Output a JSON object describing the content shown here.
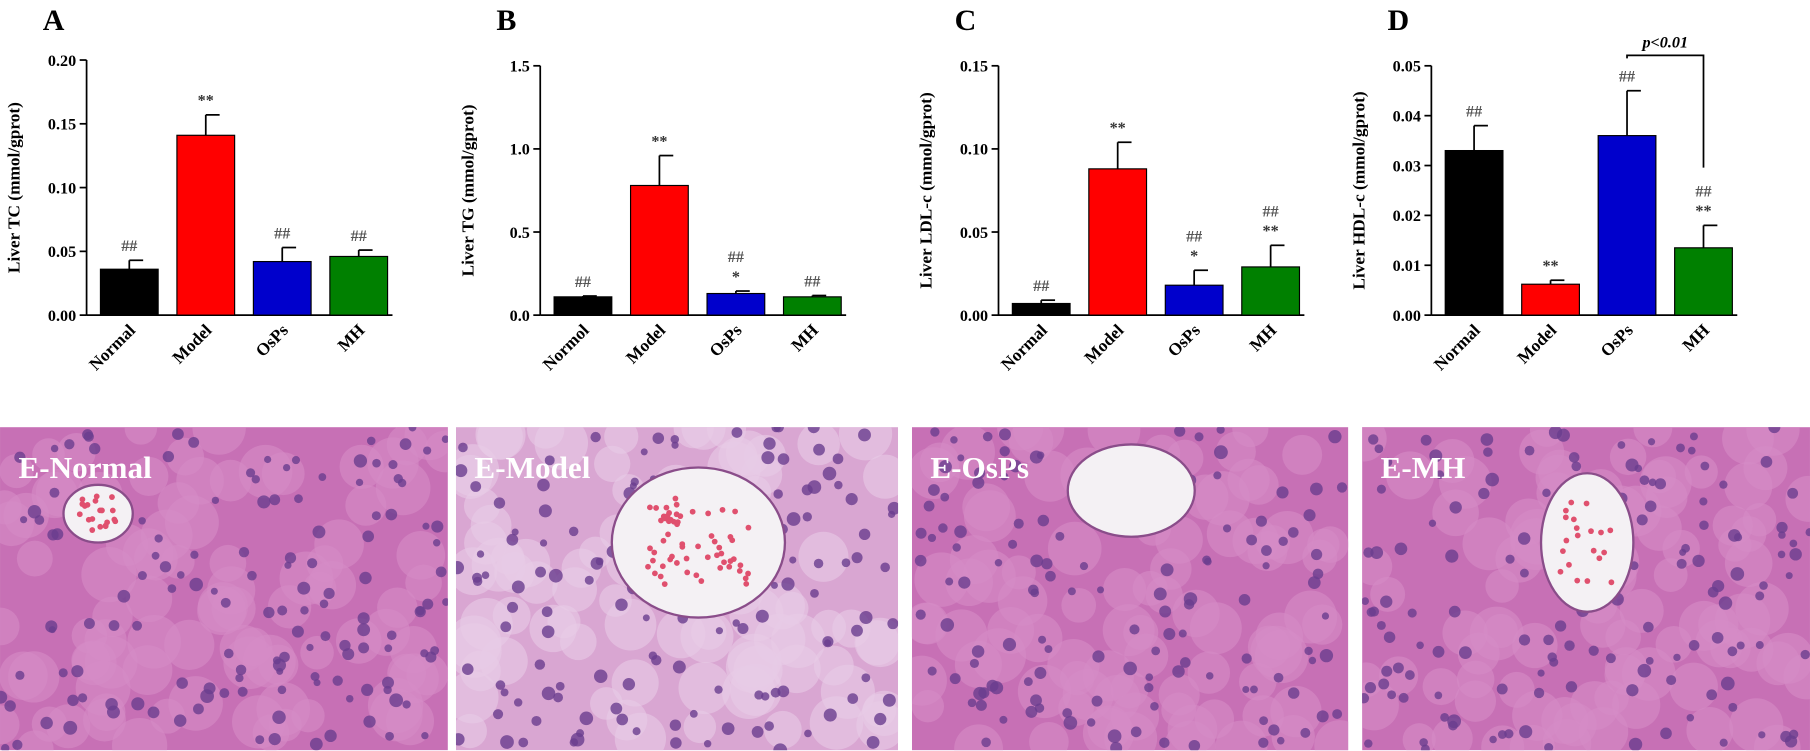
{
  "chart_data": [
    {
      "type": "bar",
      "label": "A",
      "ylabel": "Liver TC (mmol/gprot)",
      "categories": [
        "Normal",
        "Model",
        "OsPs",
        "MH"
      ],
      "values": [
        0.036,
        0.141,
        0.042,
        0.046
      ],
      "errors": [
        0.007,
        0.016,
        0.011,
        0.005
      ],
      "colors": [
        "#000000",
        "#ff0000",
        "#0000cc",
        "#008000"
      ],
      "annotations": [
        [
          "##"
        ],
        [
          "**"
        ],
        [
          "##"
        ],
        [
          "##"
        ]
      ],
      "ylim": [
        0,
        0.2
      ],
      "yticks": [
        {
          "value": 0,
          "label": "0.00"
        },
        {
          "value": 0.05,
          "label": "0.05"
        },
        {
          "value": 0.1,
          "label": "0.10"
        },
        {
          "value": 0.15,
          "label": "0.15"
        },
        {
          "value": 0.2,
          "label": "0.20"
        }
      ]
    },
    {
      "type": "bar",
      "label": "B",
      "ylabel": "Liver TG (mmol/gprot)",
      "categories": [
        "Normol",
        "Model",
        "OsPs",
        "MH"
      ],
      "values": [
        0.11,
        0.78,
        0.13,
        0.11
      ],
      "errors": [
        0.005,
        0.18,
        0.015,
        0.008
      ],
      "colors": [
        "#000000",
        "#ff0000",
        "#0000cc",
        "#008000"
      ],
      "annotations": [
        [
          "##"
        ],
        [
          "**"
        ],
        [
          "##",
          "*"
        ],
        [
          "##"
        ]
      ],
      "ylim": [
        0,
        1.5
      ],
      "yticks": [
        {
          "value": 0,
          "label": "0.0"
        },
        0.5,
        {
          "value": 1,
          "label": "1.0"
        },
        1.5
      ]
    },
    {
      "type": "bar",
      "label": "C",
      "ylabel": "Liver LDL-c (mmol/gprot)",
      "categories": [
        "Normal",
        "Model",
        "OsPs",
        "MH"
      ],
      "values": [
        0.007,
        0.088,
        0.018,
        0.029
      ],
      "errors": [
        0.002,
        0.016,
        0.009,
        0.013
      ],
      "colors": [
        "#000000",
        "#ff0000",
        "#0000cc",
        "#008000"
      ],
      "annotations": [
        [
          "##"
        ],
        [
          "**"
        ],
        [
          "##",
          "*"
        ],
        [
          "##",
          "**"
        ]
      ],
      "ylim": [
        0,
        0.15
      ],
      "yticks": [
        {
          "value": 0,
          "label": "0.00"
        },
        {
          "value": 0.05,
          "label": "0.05"
        },
        {
          "value": 0.1,
          "label": "0.10"
        },
        {
          "value": 0.15,
          "label": "0.15"
        }
      ]
    },
    {
      "type": "bar",
      "label": "D",
      "ylabel": "Liver HDL-c (mmol/gprot)",
      "categories": [
        "Normal",
        "Model",
        "OsPs",
        "MH"
      ],
      "values": [
        0.033,
        0.0062,
        0.036,
        0.0135
      ],
      "errors": [
        0.005,
        0.0008,
        0.009,
        0.0045
      ],
      "colors": [
        "#000000",
        "#ff0000",
        "#0000cc",
        "#008000"
      ],
      "annotations": [
        [
          "##"
        ],
        [
          "**"
        ],
        [
          "##"
        ],
        [
          "##",
          "**"
        ]
      ],
      "comparison": {
        "label": "p<0.01",
        "groups": [
          "OsPs",
          "MH"
        ]
      },
      "ylim": [
        0,
        0.05
      ],
      "yticks": [
        {
          "value": 0,
          "label": "0.00"
        },
        0.01,
        0.02,
        0.03,
        0.04,
        0.05
      ]
    }
  ],
  "images": [
    {
      "label": "E-Normal"
    },
    {
      "label": "E-Model"
    },
    {
      "label": "E-OsPs"
    },
    {
      "label": "E-MH"
    }
  ]
}
